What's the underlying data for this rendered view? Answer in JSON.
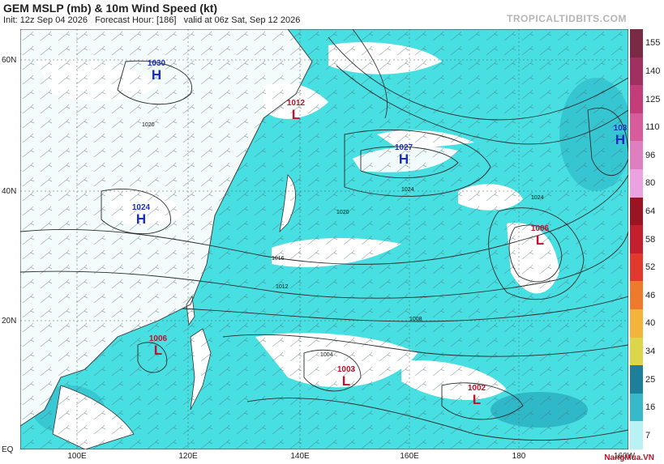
{
  "header": {
    "title": "GEM MSLP (mb) & 10m Wind Speed (kt)",
    "init": "Init: 12z Sep 04 2026",
    "forecast_hour": "Forecast Hour: [186]",
    "valid": "valid at 06z Sat, Sep 12 2026",
    "brand": "TROPICALTIDBITS.COM"
  },
  "watermark": "NangMua.VN",
  "lat_labels": [
    "60N",
    "40N",
    "20N",
    "EQ"
  ],
  "lon_labels": [
    "100E",
    "120E",
    "140E",
    "160E",
    "180",
    "160W"
  ],
  "colorbar": {
    "labels": [
      "155",
      "140",
      "125",
      "110",
      "96",
      "80",
      "64",
      "58",
      "52",
      "46",
      "40",
      "34",
      "25",
      "16",
      "7"
    ],
    "colors": [
      "#7a2a45",
      "#a0305f",
      "#c33d7b",
      "#d65c9c",
      "#e07fc0",
      "#eba2e0",
      "#9a1524",
      "#c2202e",
      "#e03a2e",
      "#ee7a2e",
      "#f2b43a",
      "#dcd64a",
      "#1e7f9a",
      "#37b9c9",
      "#b9f2f4"
    ]
  },
  "pressure_systems": [
    {
      "type": "H",
      "value": "1030"
    },
    {
      "type": "L",
      "value": "1012"
    },
    {
      "type": "H",
      "value": "1027"
    },
    {
      "type": "H",
      "value": "103"
    },
    {
      "type": "H",
      "value": "1024"
    },
    {
      "type": "L",
      "value": "1006"
    },
    {
      "type": "L",
      "value": "1006"
    },
    {
      "type": "L",
      "value": "1003"
    },
    {
      "type": "L",
      "value": "1002"
    }
  ],
  "isobar_labels": [
    "1024",
    "1020",
    "1016",
    "1012",
    "1008",
    "1004"
  ],
  "colors": {
    "high": "#1a2fbf",
    "low": "#c0122a",
    "wind_light": "#40e0e0",
    "land": "#ffffff"
  }
}
